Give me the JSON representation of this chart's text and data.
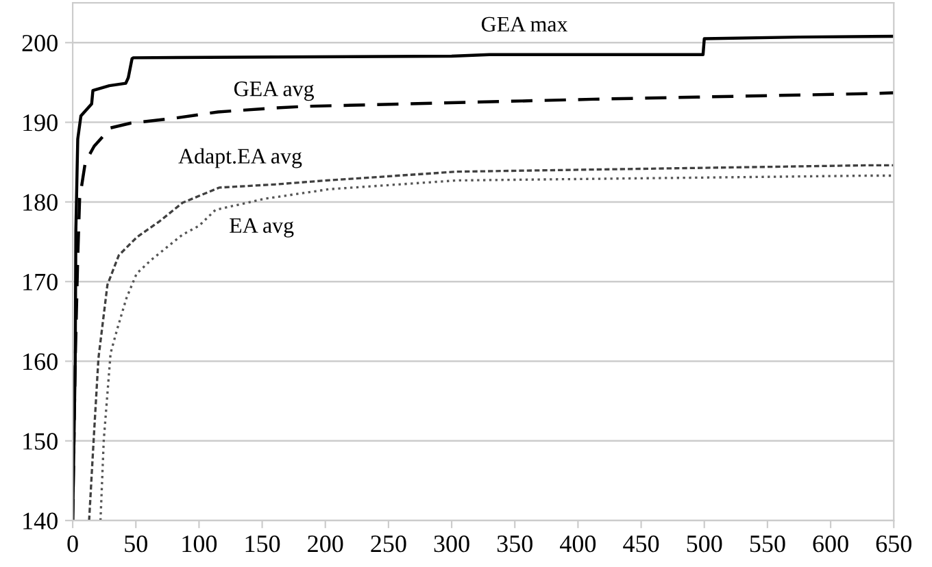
{
  "chart_data": {
    "type": "line",
    "xlim": [
      0,
      650
    ],
    "xticks": [
      0,
      50,
      100,
      150,
      200,
      250,
      300,
      350,
      400,
      450,
      500,
      550,
      600,
      650
    ],
    "ylim": [
      140,
      205
    ],
    "yticks": [
      140,
      150,
      160,
      170,
      180,
      190,
      200
    ],
    "grid": "y",
    "legend": false,
    "marker": "none",
    "series": [
      {
        "name": "GEA max",
        "color": "#000000",
        "line_style": "solid",
        "x": [
          0,
          2,
          2.5,
          4,
          6.5,
          15,
          16,
          29,
          42,
          44,
          47,
          48,
          160,
          300,
          330,
          499,
          500,
          575,
          650
        ],
        "values": [
          140,
          160,
          176.4,
          187.9,
          190.8,
          192.3,
          194.0,
          194.6,
          194.9,
          195.6,
          198.0,
          198.1,
          198.2,
          198.3,
          198.5,
          198.5,
          200.5,
          200.7,
          200.8
        ]
      },
      {
        "name": "GEA avg",
        "color": "#000000",
        "line_style": "dashed",
        "x": [
          0,
          2,
          4,
          5.5,
          10,
          17,
          30,
          46,
          80,
          115,
          160,
          184,
          412,
          629,
          650
        ],
        "values": [
          140,
          160,
          173,
          180.4,
          185,
          187,
          189.3,
          189.9,
          190.5,
          191.3,
          191.8,
          192,
          192.9,
          193.6,
          193.7
        ]
      },
      {
        "name": "Adapt.EA avg",
        "color": "#404040",
        "line_style": "dashed",
        "x": [
          13,
          16.8,
          20.4,
          27.5,
          36.5,
          51,
          69,
          87,
          116,
          160,
          201,
          304,
          629,
          650
        ],
        "values": [
          140,
          150.7,
          160.4,
          169.6,
          173.3,
          175.6,
          177.6,
          179.9,
          181.8,
          182.2,
          182.7,
          183.8,
          184.6,
          184.6
        ]
      },
      {
        "name": "EA avg",
        "color": "#555555",
        "line_style": "dotted",
        "x": [
          22,
          24.6,
          30,
          35,
          42.5,
          50.6,
          62,
          87,
          100,
          113,
          152,
          203,
          304,
          629,
          650
        ],
        "values": [
          140,
          150.1,
          161,
          163.9,
          167.9,
          171,
          172.7,
          175.9,
          177,
          179,
          180.4,
          181.6,
          182.7,
          183.3,
          183.3
        ]
      }
    ]
  }
}
